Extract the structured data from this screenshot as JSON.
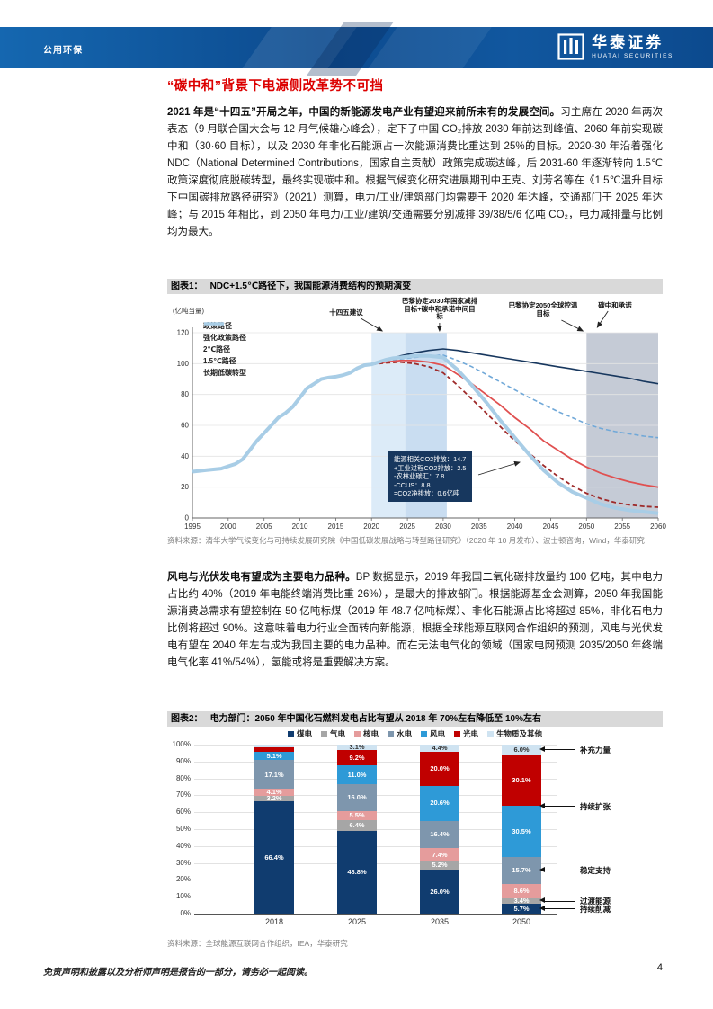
{
  "header": {
    "section_label": "公用环保",
    "brand_cn": "华泰证券",
    "brand_en": "HUATAI SECURITIES"
  },
  "article": {
    "title": "“碳中和”背景下电源侧改革势不可挡",
    "para1": {
      "lead": "2021 年是“十四五”开局之年，中国的新能源发电产业有望迎来前所未有的发展空间。",
      "body": "习主席在 2020 年两次表态（9 月联合国大会与 12 月气候雄心峰会），定下了中国 CO₂排放 2030 年前达到峰值、2060 年前实现碳中和（30·60 目标），以及 2030 年非化石能源占一次能源消费比重达到 25%的目标。2020-30 年沿着强化 NDC（National Determined Contributions，国家自主贡献）政策完成碳达峰，后 2031-60 年逐渐转向 1.5℃政策深度彻底脱碳转型，最终实现碳中和。根据气候变化研究进展期刊中王克、刘芳名等在《1.5℃温升目标下中国碳排放路径研究》（2021）测算，电力/工业/建筑部门均需要于 2020 年达峰，交通部门于 2025 年达峰；与 2015 年相比，到 2050 年电力/工业/建筑/交通需要分别减排 39/38/5/6 亿吨 CO₂，电力减排量与比例均为最大。"
    },
    "para2": {
      "lead": "风电与光伏发电有望成为主要电力品种。",
      "body": "BP 数据显示，2019 年我国二氧化碳排放量约 100 亿吨，其中电力占比约 40%（2019 年电能终端消费比重 26%），是最大的排放部门。根据能源基金会测算，2050 年我国能源消费总需求有望控制在 50 亿吨标煤（2019 年 48.7 亿吨标煤）、非化石能源占比将超过 85%，非化石电力比例将超过 90%。这意味着电力行业全面转向新能源，根据全球能源互联网合作组织的预测，风电与光伏发电有望在 2040 年左右成为我国主要的电力品种。而在无法电气化的领域（国家电网预测 2035/2050 年终端电气化率 41%/54%），氢能或将是重要解决方案。"
    }
  },
  "figure1": {
    "tag": "图表1：",
    "title": "NDC+1.5℃路径下，我国能源消费结构的预期演变",
    "source": "资料来源：清华大学气候变化与可持续发展研究院《中国低碳发展战略与转型路径研究》（2020 年 10 月发布）、波士顿咨询，Wind，华泰研究"
  },
  "figure2": {
    "tag": "图表2：",
    "title": "电力部门：2050 年中国化石燃料发电占比有望从 2018 年 70%左右降低至 10%左右",
    "source": "资料来源：全球能源互联网合作组织，IEA，华泰研究"
  },
  "footer": {
    "disclaimer": "免责声明和披露以及分析师声明是报告的一部分，请务必一起阅读。",
    "page_number": "4"
  },
  "colors": {
    "header_blue": "#1567b0",
    "header_blue_dark": "#0c4a8e",
    "title_red": "#dc0000",
    "figure_header_bg": "#d9d9d9",
    "source_grey": "#7f7f7f",
    "note_box_bg": "#17375e",
    "text_black": "#1a1a1a"
  },
  "chart_data": [
    {
      "type": "line",
      "title": "NDC+1.5℃路径下，我国能源消费结构的预期演变",
      "ylabel": "(亿吨当量)",
      "xlim": [
        1995,
        2060
      ],
      "ylim": [
        0,
        120
      ],
      "yticks": [
        0,
        20,
        40,
        60,
        80,
        100,
        120
      ],
      "xticks": [
        1995,
        2000,
        2005,
        2010,
        2015,
        2020,
        2025,
        2030,
        2035,
        2040,
        2045,
        2050,
        2055,
        2060
      ],
      "grid": true,
      "legend_position": "top-left",
      "bands": [
        {
          "x0": 2020,
          "x1": 2024.7,
          "color": "#dcebf8"
        },
        {
          "x0": 2024.7,
          "x1": 2030.5,
          "color": "#c9ddf1"
        },
        {
          "x0": 2050,
          "x1": 2060,
          "color": "#c5cbd6"
        }
      ],
      "series": [
        {
          "name": "政策路径",
          "color": "#17375e",
          "dash": false,
          "width": 1.6,
          "points": [
            [
              2020,
              99.5
            ],
            [
              2022,
              102
            ],
            [
              2024,
              105
            ],
            [
              2026,
              107
            ],
            [
              2028,
              108.5
            ],
            [
              2030,
              109.5
            ],
            [
              2032,
              108.5
            ],
            [
              2034,
              107
            ],
            [
              2036,
              105.5
            ],
            [
              2038,
              104
            ],
            [
              2040,
              102.5
            ],
            [
              2042,
              101
            ],
            [
              2044,
              99.5
            ],
            [
              2046,
              98
            ],
            [
              2048,
              96.5
            ],
            [
              2050,
              95
            ],
            [
              2052,
              93.5
            ],
            [
              2054,
              92
            ],
            [
              2056,
              90.5
            ],
            [
              2058,
              88.5
            ],
            [
              2060,
              87
            ]
          ]
        },
        {
          "name": "强化政策路径",
          "color": "#70a8d8",
          "dash": true,
          "width": 1.6,
          "points": [
            [
              2020,
              99.5
            ],
            [
              2022,
              101.5
            ],
            [
              2024,
              103
            ],
            [
              2026,
              104
            ],
            [
              2028,
              105
            ],
            [
              2030,
              105.5
            ],
            [
              2032,
              102
            ],
            [
              2034,
              98
            ],
            [
              2036,
              93
            ],
            [
              2038,
              88
            ],
            [
              2040,
              83
            ],
            [
              2042,
              78
            ],
            [
              2044,
              73.5
            ],
            [
              2046,
              69
            ],
            [
              2048,
              65
            ],
            [
              2050,
              61
            ],
            [
              2052,
              58
            ],
            [
              2054,
              56
            ],
            [
              2056,
              54.5
            ],
            [
              2058,
              53
            ],
            [
              2060,
              52
            ]
          ]
        },
        {
          "name": "2℃路径",
          "color": "#e05050",
          "dash": false,
          "width": 1.8,
          "points": [
            [
              2020,
              99.5
            ],
            [
              2022,
              101
            ],
            [
              2024,
              102
            ],
            [
              2026,
              102
            ],
            [
              2028,
              101
            ],
            [
              2030,
              99
            ],
            [
              2032,
              93
            ],
            [
              2034,
              87
            ],
            [
              2036,
              80
            ],
            [
              2038,
              73
            ],
            [
              2040,
              65
            ],
            [
              2042,
              58
            ],
            [
              2044,
              50
            ],
            [
              2046,
              44
            ],
            [
              2048,
              38
            ],
            [
              2050,
              33
            ],
            [
              2052,
              29
            ],
            [
              2054,
              26
            ],
            [
              2056,
              23.5
            ],
            [
              2058,
              21.5
            ],
            [
              2060,
              20
            ]
          ]
        },
        {
          "name": "1.5℃路径",
          "color": "#9e2a2a",
          "dash": true,
          "width": 1.8,
          "points": [
            [
              2020,
              99.5
            ],
            [
              2022,
              100.5
            ],
            [
              2024,
              101
            ],
            [
              2026,
              100
            ],
            [
              2028,
              98
            ],
            [
              2030,
              94
            ],
            [
              2032,
              86
            ],
            [
              2034,
              77
            ],
            [
              2036,
              68
            ],
            [
              2038,
              59
            ],
            [
              2040,
              50
            ],
            [
              2042,
              42
            ],
            [
              2044,
              34
            ],
            [
              2046,
              27
            ],
            [
              2048,
              21
            ],
            [
              2050,
              16
            ],
            [
              2052,
              12.5
            ],
            [
              2054,
              10
            ],
            [
              2056,
              8.5
            ],
            [
              2058,
              7.5
            ],
            [
              2060,
              7
            ]
          ]
        },
        {
          "name": "长期低碳转型",
          "color": "#a8cde6",
          "dash": false,
          "width": 4,
          "points": [
            [
              1995,
              30
            ],
            [
              1997,
              31
            ],
            [
              1999,
              32
            ],
            [
              2000,
              33.5
            ],
            [
              2001,
              35
            ],
            [
              2002,
              38
            ],
            [
              2003,
              44
            ],
            [
              2004,
              50
            ],
            [
              2005,
              55
            ],
            [
              2006,
              60
            ],
            [
              2007,
              65
            ],
            [
              2008,
              68
            ],
            [
              2009,
              72
            ],
            [
              2010,
              78
            ],
            [
              2011,
              84
            ],
            [
              2012,
              87
            ],
            [
              2013,
              90
            ],
            [
              2014,
              91
            ],
            [
              2015,
              91.5
            ],
            [
              2016,
              92.5
            ],
            [
              2017,
              94
            ],
            [
              2018,
              97
            ],
            [
              2019,
              99
            ],
            [
              2020,
              99.5
            ],
            [
              2021,
              101
            ],
            [
              2022,
              102.5
            ],
            [
              2023,
              103.5
            ],
            [
              2024,
              104
            ],
            [
              2025,
              104.5
            ],
            [
              2026,
              105
            ],
            [
              2028,
              105
            ],
            [
              2029,
              104.5
            ],
            [
              2030,
              104
            ],
            [
              2032,
              96
            ],
            [
              2034,
              86
            ],
            [
              2036,
              75
            ],
            [
              2038,
              63
            ],
            [
              2040,
              52
            ],
            [
              2042,
              41
            ],
            [
              2044,
              31
            ],
            [
              2046,
              23
            ],
            [
              2048,
              17
            ],
            [
              2050,
              13
            ],
            [
              2052,
              9
            ],
            [
              2054,
              6.5
            ],
            [
              2056,
              5
            ],
            [
              2058,
              4
            ],
            [
              2060,
              3
            ]
          ]
        }
      ],
      "annotations": [
        {
          "text": "十四五建议",
          "year": 2016.5,
          "top": 14,
          "w": 58,
          "ax0": [
            2018.5,
            24
          ],
          "ax1": [
            2021.5,
            38
          ]
        },
        {
          "text": "巴黎协定2030年国家减排目标+碳中和承诺中间目标",
          "year": 2029.5,
          "top": 1,
          "w": 86,
          "ax0": [
            2029.5,
            29
          ],
          "ax1": [
            2029.5,
            38
          ]
        },
        {
          "text": "巴黎协定2050全球控温目标",
          "year": 2044,
          "top": 6,
          "w": 80,
          "ax0": [
            2046.5,
            26
          ],
          "ax1": [
            2049.5,
            38
          ]
        },
        {
          "text": "碳中和承诺",
          "year": 2054,
          "top": 6,
          "w": 62,
          "ax0": [
            2053,
            16
          ],
          "ax1": [
            2051.5,
            34
          ]
        }
      ],
      "note_box": {
        "lines": [
          "能源相关CO2排放：14.7",
          "+工业过程CO2排放：2.5",
          "-农林业碳汇：7.8",
          "-CCUS：8.8",
          "=CO2净排放：0.6亿吨"
        ],
        "pos": [
          246,
          172
        ],
        "arrow": [
          [
            346,
            198
          ],
          [
            392,
            184
          ]
        ]
      }
    },
    {
      "type": "bar",
      "stacked": true,
      "unit": "%",
      "ylim": [
        0,
        100
      ],
      "ytick_step": 10,
      "categories": [
        "2018",
        "2025",
        "2035",
        "2050"
      ],
      "series": [
        {
          "name": "煤电",
          "color": "#103c6f",
          "label_color": "#ffffff",
          "values": [
            66.4,
            48.8,
            26.0,
            5.7
          ]
        },
        {
          "name": "气电",
          "color": "#a6a6a6",
          "label_color": "#ffffff",
          "values": [
            3.2,
            6.4,
            5.2,
            3.4
          ]
        },
        {
          "name": "核电",
          "color": "#e59c9c",
          "label_color": "#ffffff",
          "values": [
            4.1,
            5.5,
            7.4,
            8.6
          ]
        },
        {
          "name": "水电",
          "color": "#7e96ad",
          "label_color": "#ffffff",
          "values": [
            17.1,
            16.0,
            16.4,
            15.7
          ]
        },
        {
          "name": "风电",
          "color": "#2e9ad7",
          "label_color": "#ffffff",
          "values": [
            5.1,
            11.0,
            20.6,
            30.5
          ]
        },
        {
          "name": "光电",
          "color": "#c00000",
          "label_color": "#ffffff",
          "values": [
            2.5,
            9.2,
            20.0,
            30.1
          ]
        },
        {
          "name": "生物质及其他",
          "color": "#cfe3f1",
          "label_color": "#333333",
          "values": [
            1.6,
            3.1,
            4.4,
            6.0
          ]
        }
      ],
      "annotations": [
        {
          "text": "补充力量",
          "at": 97.0
        },
        {
          "text": "持续扩张",
          "at": 63.5
        },
        {
          "text": "稳定支持",
          "at": 25.5
        },
        {
          "text": "过渡能源",
          "at": 7.4
        },
        {
          "text": "持续削减",
          "at": 2.8
        }
      ]
    }
  ]
}
